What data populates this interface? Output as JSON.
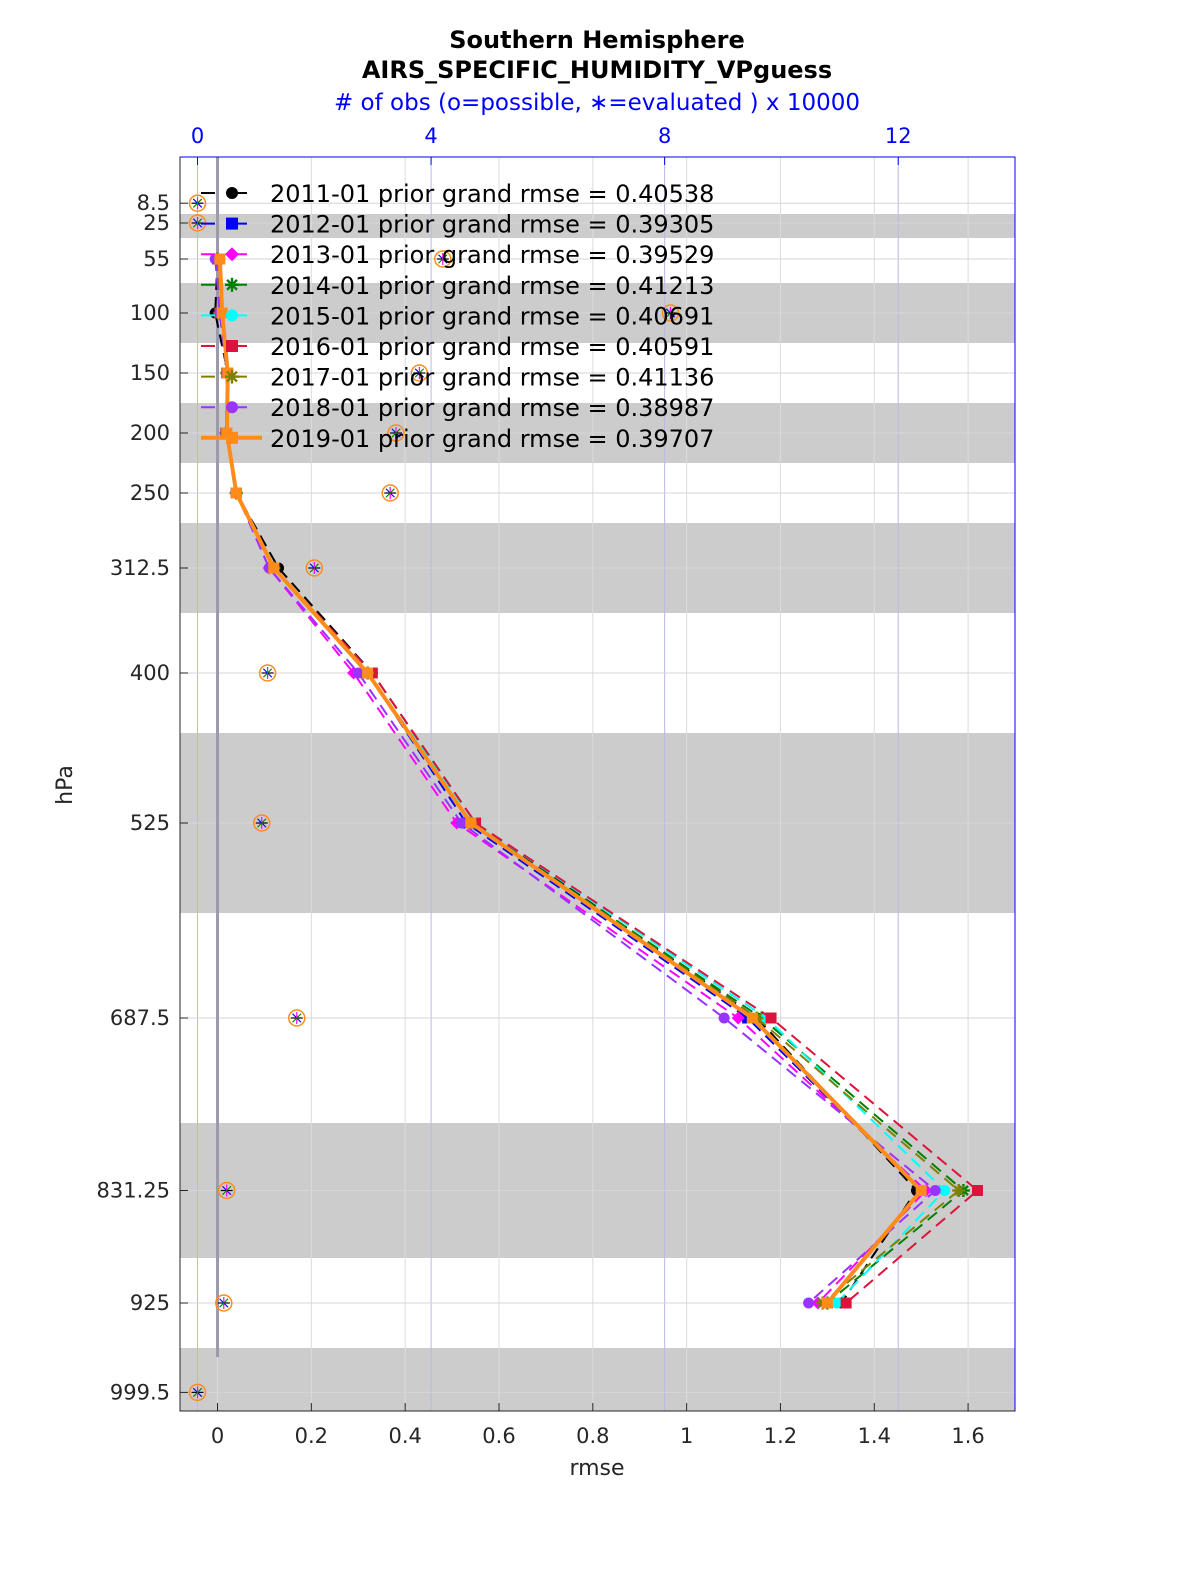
{
  "chart_data": {
    "type": "line",
    "title": "Southern Hemisphere",
    "subtitle": "AIRS_SPECIFIC_HUMIDITY_VPguess",
    "top_axis_label": "# of obs (o=possible, ∗=evaluated ) x 10000",
    "xlabel": "rmse",
    "ylabel": "hPa",
    "xlim": [
      -0.08,
      1.7
    ],
    "ylim": [
      1015,
      -30
    ],
    "xticks": [
      0,
      0.2,
      0.4,
      0.6,
      0.8,
      1,
      1.2,
      1.4,
      1.6
    ],
    "xtick_labels": [
      "0",
      "0.2",
      "0.4",
      "0.6",
      "0.8",
      "1",
      "1.2",
      "1.4",
      "1.6"
    ],
    "top_xlim": [
      -0.3,
      14.0
    ],
    "top_xticks": [
      0,
      4,
      8,
      12
    ],
    "top_xtick_labels": [
      "0",
      "4",
      "8",
      "12"
    ],
    "levels": [
      8.5,
      25,
      55,
      100,
      150,
      200,
      250,
      312.5,
      400,
      525,
      687.5,
      831.25,
      925,
      999.5
    ],
    "level_labels": [
      "8.5",
      "25",
      "55",
      "100",
      "150",
      "200",
      "250",
      "312.5",
      "400",
      "525",
      "687.5",
      "831.25",
      "925",
      "999.5"
    ],
    "shaded_bands": [
      [
        17.5,
        37.5
      ],
      [
        75,
        125
      ],
      [
        175,
        225
      ],
      [
        275,
        350
      ],
      [
        450,
        600
      ],
      [
        775,
        887.5
      ],
      [
        962.5,
        1037.5
      ]
    ],
    "obs_counts_x10000": [
      0.0,
      0.0,
      4.2,
      8.1,
      3.8,
      3.4,
      3.3,
      2.0,
      1.2,
      1.1,
      1.7,
      0.5,
      0.45,
      0.0
    ],
    "series": [
      {
        "name": "2011-01",
        "label": "2011-01 prior grand rmse = 0.40538",
        "color": "#000000",
        "marker": "circle",
        "width": 2,
        "dash": true,
        "levels": [
          55,
          100,
          150,
          200,
          250,
          312.5,
          400,
          525,
          687.5,
          831.25,
          925
        ],
        "values": [
          0.0,
          -0.005,
          0.022,
          0.02,
          0.04,
          0.13,
          0.33,
          0.55,
          1.15,
          1.49,
          1.33
        ]
      },
      {
        "name": "2012-01",
        "label": "2012-01 prior grand rmse = 0.39305",
        "color": "#0000ff",
        "marker": "square",
        "width": 2,
        "dash": true,
        "levels": [
          55,
          100,
          150,
          200,
          250,
          312.5,
          400,
          525,
          687.5,
          831.25,
          925
        ],
        "values": [
          0.0,
          0.005,
          0.02,
          0.018,
          0.04,
          0.12,
          0.32,
          0.53,
          1.13,
          1.5,
          1.3
        ]
      },
      {
        "name": "2013-01",
        "label": "2013-01 prior grand rmse = 0.39529",
        "color": "#ff00ff",
        "marker": "diamond",
        "width": 2,
        "dash": true,
        "levels": [
          55,
          100,
          150,
          200,
          250,
          312.5,
          400,
          525,
          687.5,
          831.25,
          925
        ],
        "values": [
          0.0,
          0.005,
          0.02,
          0.018,
          0.04,
          0.11,
          0.29,
          0.51,
          1.11,
          1.51,
          1.28
        ]
      },
      {
        "name": "2014-01",
        "label": "2014-01 prior grand rmse = 0.41213",
        "color": "#008000",
        "marker": "star",
        "width": 2,
        "dash": true,
        "levels": [
          55,
          100,
          150,
          200,
          250,
          312.5,
          400,
          525,
          687.5,
          831.25,
          925
        ],
        "values": [
          0.0,
          0.005,
          0.02,
          0.018,
          0.04,
          0.12,
          0.32,
          0.54,
          1.16,
          1.59,
          1.3
        ]
      },
      {
        "name": "2015-01",
        "label": "2015-01 prior grand rmse = 0.40691",
        "color": "#00ffff",
        "marker": "circle",
        "width": 2,
        "dash": true,
        "levels": [
          55,
          100,
          150,
          200,
          250,
          312.5,
          400,
          525,
          687.5,
          831.25,
          925
        ],
        "values": [
          0.0,
          0.005,
          0.02,
          0.018,
          0.04,
          0.12,
          0.32,
          0.55,
          1.17,
          1.55,
          1.32
        ]
      },
      {
        "name": "2016-01",
        "label": "2016-01 prior grand rmse = 0.40591",
        "color": "#dc143c",
        "marker": "square",
        "width": 2,
        "dash": true,
        "levels": [
          55,
          100,
          150,
          200,
          250,
          312.5,
          400,
          525,
          687.5,
          831.25,
          925
        ],
        "values": [
          0.0,
          0.005,
          0.02,
          0.018,
          0.04,
          0.12,
          0.33,
          0.55,
          1.18,
          1.62,
          1.34
        ]
      },
      {
        "name": "2017-01",
        "label": "2017-01 prior grand rmse = 0.41136",
        "color": "#808000",
        "marker": "star",
        "width": 2,
        "dash": true,
        "levels": [
          55,
          100,
          150,
          200,
          250,
          312.5,
          400,
          525,
          687.5,
          831.25,
          925
        ],
        "values": [
          0.0,
          0.005,
          0.02,
          0.018,
          0.04,
          0.12,
          0.32,
          0.54,
          1.15,
          1.58,
          1.29
        ]
      },
      {
        "name": "2018-01",
        "label": "2018-01 prior grand rmse = 0.38987",
        "color": "#9933ff",
        "marker": "circle",
        "width": 2,
        "dash": true,
        "levels": [
          55,
          100,
          150,
          200,
          250,
          312.5,
          400,
          525,
          687.5,
          831.25,
          925
        ],
        "values": [
          -0.005,
          0.005,
          0.02,
          0.018,
          0.04,
          0.11,
          0.3,
          0.52,
          1.08,
          1.53,
          1.26
        ]
      },
      {
        "name": "2019-01",
        "label": "2019-01 prior grand rmse = 0.39707",
        "color": "#ff8c1a",
        "marker": "square",
        "width": 4,
        "dash": false,
        "levels": [
          55,
          100,
          150,
          200,
          250,
          312.5,
          400,
          525,
          687.5,
          831.25,
          925
        ],
        "values": [
          0.005,
          0.01,
          0.022,
          0.02,
          0.04,
          0.12,
          0.32,
          0.54,
          1.14,
          1.5,
          1.3
        ]
      }
    ]
  }
}
